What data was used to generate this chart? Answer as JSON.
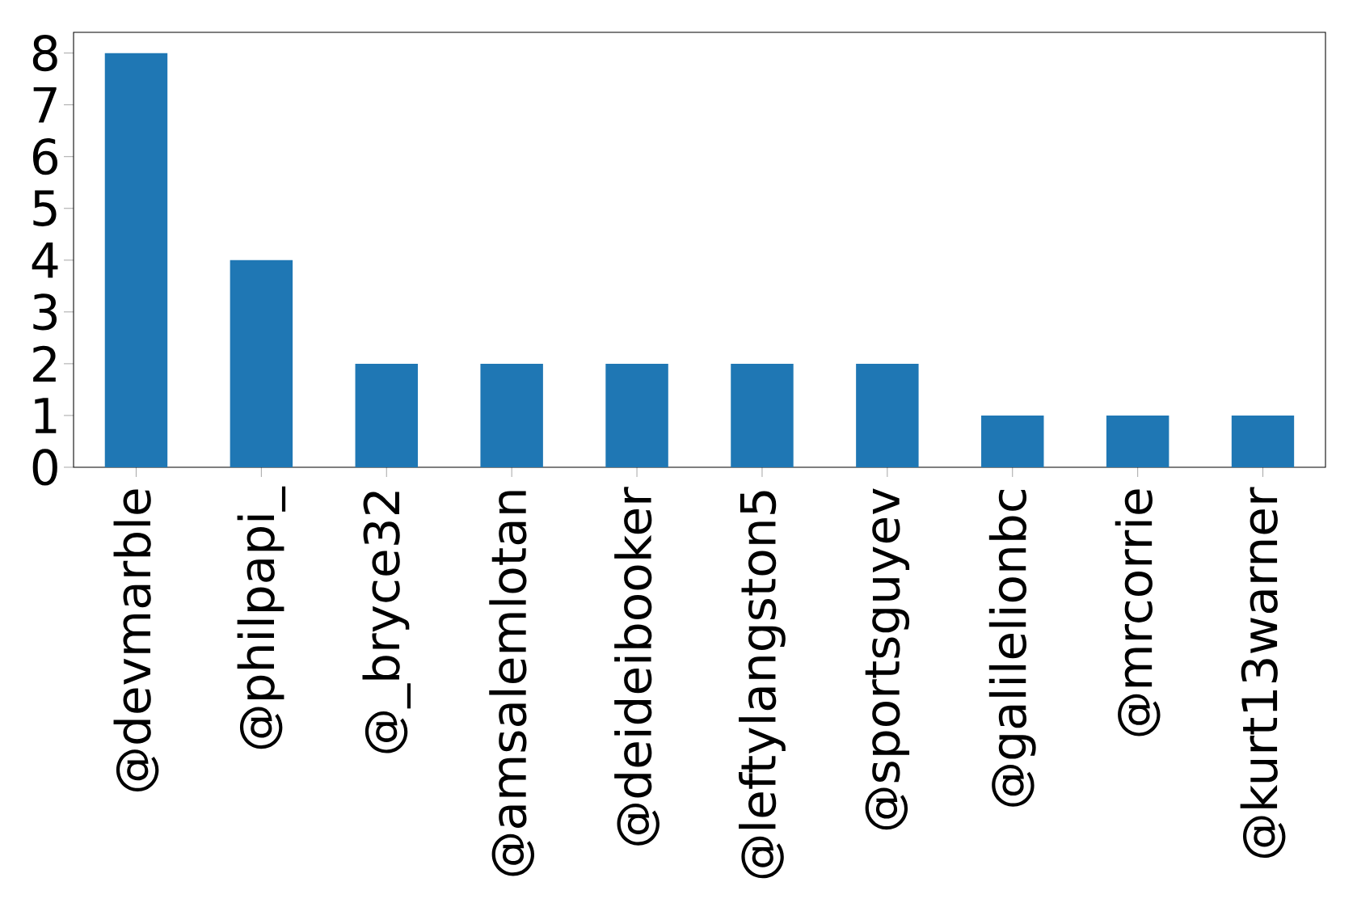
{
  "chart_data": {
    "type": "bar",
    "categories": [
      "@devmarble",
      "@philpapi_",
      "@_bryce32",
      "@amsalemlotan",
      "@deideibooker",
      "@leftylangston5",
      "@sportsguyev",
      "@galilelionbc",
      "@mrcorrie",
      "@kurt13warner"
    ],
    "values": [
      8,
      4,
      2,
      2,
      2,
      2,
      2,
      1,
      1,
      1
    ],
    "color": "#1f77b4",
    "ylim": [
      0,
      8.4
    ],
    "yticks": [
      0,
      1,
      2,
      3,
      4,
      5,
      6,
      7,
      8
    ],
    "grid": false
  }
}
